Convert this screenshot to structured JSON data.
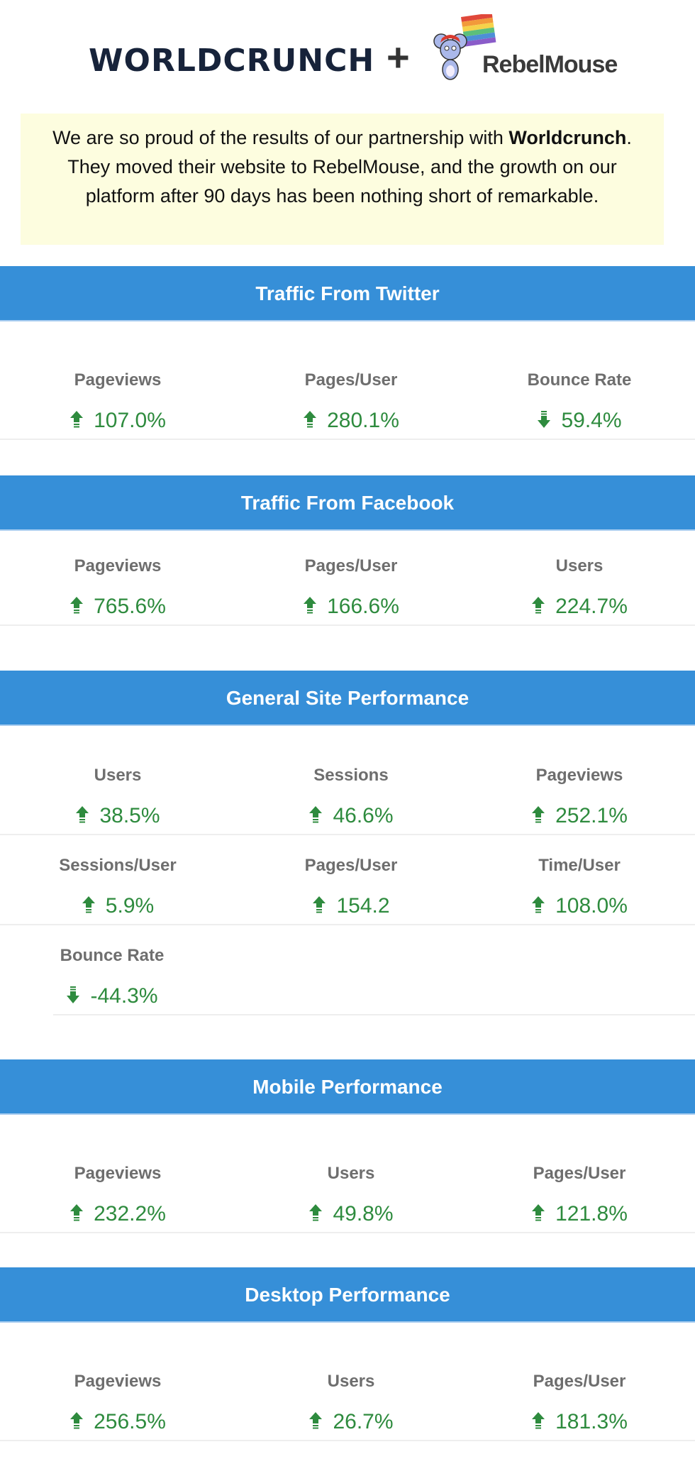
{
  "logos": {
    "left_logo": "WORLDCRUNCH",
    "plus": "+",
    "right_logo": "RebelMouse"
  },
  "intro": {
    "text_before": "We are so proud of the results of our partnership with ",
    "bold": "Worldcrunch",
    "text_after": ". They moved their website to RebelMouse, and the growth on our platform after 90 days has been nothing short of remarkable."
  },
  "colors": {
    "header_bg": "#368fd8",
    "value_green": "#2e8b3e",
    "intro_bg": "#fdfddf"
  },
  "sections": [
    {
      "title": "Traffic From Twitter",
      "rows": [
        [
          {
            "label": "Pageviews",
            "value": "107.0%",
            "trend": "up"
          },
          {
            "label": "Pages/User",
            "value": "280.1%",
            "trend": "up"
          },
          {
            "label": "Bounce Rate",
            "value": "59.4%",
            "trend": "down"
          }
        ]
      ]
    },
    {
      "title": "Traffic From Facebook",
      "rows": [
        [
          {
            "label": "Pageviews",
            "value": "765.6%",
            "trend": "up"
          },
          {
            "label": "Pages/User",
            "value": "166.6%",
            "trend": "up"
          },
          {
            "label": "Users",
            "value": "224.7%",
            "trend": "up"
          }
        ]
      ]
    },
    {
      "title": "General Site Performance",
      "rows": [
        [
          {
            "label": "Users",
            "value": "38.5%",
            "trend": "up"
          },
          {
            "label": "Sessions",
            "value": "46.6%",
            "trend": "up"
          },
          {
            "label": "Pageviews",
            "value": "252.1%",
            "trend": "up"
          }
        ],
        [
          {
            "label": "Sessions/User",
            "value": "5.9%",
            "trend": "up"
          },
          {
            "label": "Pages/User",
            "value": "154.2",
            "trend": "up"
          },
          {
            "label": "Time/User",
            "value": "108.0%",
            "trend": "up"
          }
        ],
        [
          {
            "label": "Bounce Rate",
            "value": "-44.3%",
            "trend": "down"
          }
        ]
      ]
    },
    {
      "title": "Mobile Performance",
      "rows": [
        [
          {
            "label": "Pageviews",
            "value": "232.2%",
            "trend": "up"
          },
          {
            "label": "Users",
            "value": "49.8%",
            "trend": "up"
          },
          {
            "label": "Pages/User",
            "value": "121.8%",
            "trend": "up"
          }
        ]
      ]
    },
    {
      "title": "Desktop Performance",
      "rows": [
        [
          {
            "label": "Pageviews",
            "value": "256.5%",
            "trend": "up"
          },
          {
            "label": "Users",
            "value": "26.7%",
            "trend": "up"
          },
          {
            "label": "Pages/User",
            "value": "181.3%",
            "trend": "up"
          }
        ]
      ]
    }
  ]
}
